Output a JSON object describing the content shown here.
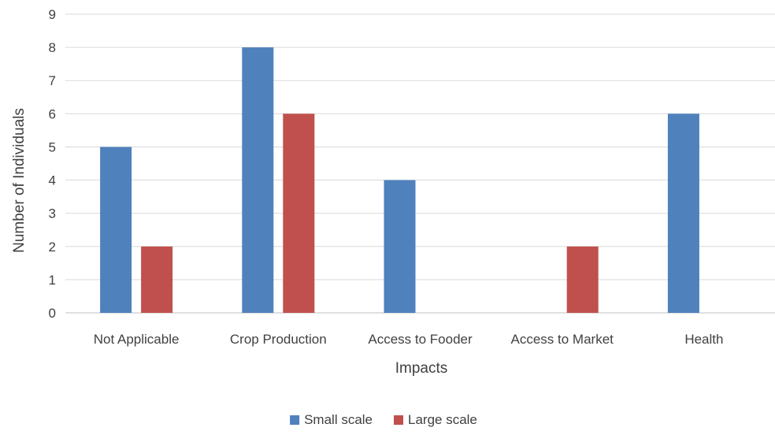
{
  "chart_data": {
    "type": "bar",
    "categories": [
      "Not Applicable",
      "Crop Production",
      "Access to Fooder",
      "Access to Market",
      "Health"
    ],
    "series": [
      {
        "name": "Small scale",
        "color": "#4F81BD",
        "values": [
          5,
          8,
          4,
          0,
          6
        ]
      },
      {
        "name": "Large scale",
        "color": "#C0504D",
        "values": [
          2,
          6,
          0,
          2,
          0
        ]
      }
    ],
    "xlabel": "Impacts",
    "ylabel": "Number of Individuals",
    "ylim": [
      0,
      9
    ],
    "yticks": [
      0,
      1,
      2,
      3,
      4,
      5,
      6,
      7,
      8,
      9
    ],
    "grid": true,
    "legend_position": "bottom"
  }
}
